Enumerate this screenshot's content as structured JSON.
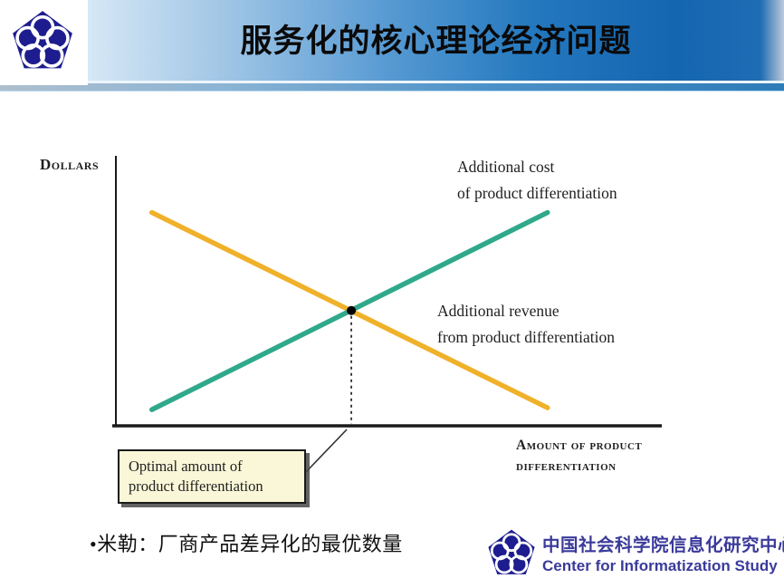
{
  "header": {
    "title": "服务化的核心理论经济问题"
  },
  "slide": {
    "bullet": "•米勒：厂商产品差异化的最优数量"
  },
  "footer": {
    "org_cn": "中国社会科学院信息化研究中心",
    "org_en": "Center for Informatization Study",
    "logo": "cass-pentagon-emblem"
  },
  "colors": {
    "header_blue": "#1466b0",
    "cost_line": "#2FA98A",
    "revenue_line": "#F0B12A",
    "callout_bg": "#FAF7D8",
    "footer_blue": "#3A3A9A",
    "emblem_navy": "#1D1D8F"
  },
  "chart_data": {
    "type": "line",
    "title": "",
    "ylabel": "Dollars",
    "xlabel": "Amount of product differentiation",
    "xlabel_lines": [
      "Amount of product",
      "differentiation"
    ],
    "axis_numeric": false,
    "xlim": [
      0,
      1
    ],
    "ylim": [
      0,
      1
    ],
    "grid": false,
    "legend": "inline-annotations",
    "series": [
      {
        "name": "Additional cost of product differentiation",
        "label_lines": [
          "Additional cost",
          "of product differentiation"
        ],
        "color": "#2FA98A",
        "x": [
          0.066,
          0.792
        ],
        "y": [
          0.06,
          0.79
        ]
      },
      {
        "name": "Additional revenue from product differentiation",
        "label_lines": [
          "Additional revenue",
          "from product differentiation"
        ],
        "color": "#F0B12A",
        "x": [
          0.066,
          0.792
        ],
        "y": [
          0.79,
          0.067
        ]
      }
    ],
    "intersection": {
      "x": 0.432,
      "y": 0.427,
      "marker": "black-dot",
      "dashed_drop_line": true
    },
    "annotation": {
      "label_lines": [
        "Optimal amount of",
        "product differentiation"
      ],
      "target_x": 0.432
    }
  }
}
